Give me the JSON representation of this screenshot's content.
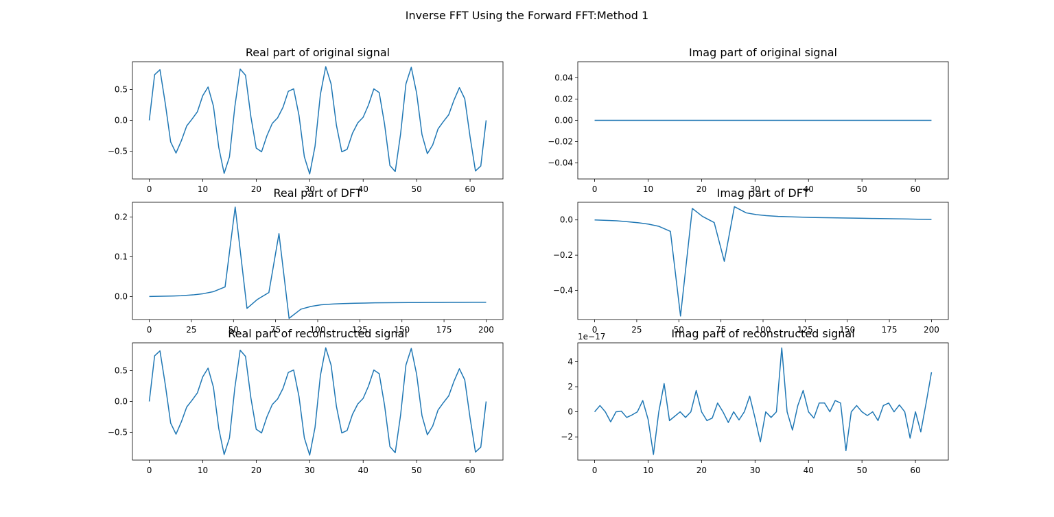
{
  "figure": {
    "title": "Inverse FFT Using the Forward FFT:Method 1"
  },
  "chart_data": [
    {
      "type": "line",
      "title": "Real part of original signal",
      "xlabel": "",
      "ylabel": "",
      "xlim": [
        -3.15,
        66.15
      ],
      "ylim": [
        -0.95,
        0.95
      ],
      "xticks": [
        0,
        10,
        20,
        30,
        40,
        50,
        60
      ],
      "yticks": [
        -0.5,
        0.0,
        0.5
      ],
      "ytick_labels": [
        "−0.5",
        "0.0",
        "0.5"
      ],
      "offset_label": "",
      "line_color": "#1f77b4",
      "grid": false,
      "x": [
        0,
        1,
        2,
        3,
        4,
        5,
        6,
        7,
        8,
        9,
        10,
        11,
        12,
        13,
        14,
        15,
        16,
        17,
        18,
        19,
        20,
        21,
        22,
        23,
        24,
        25,
        26,
        27,
        28,
        29,
        30,
        31,
        32,
        33,
        34,
        35,
        36,
        37,
        38,
        39,
        40,
        41,
        42,
        43,
        44,
        45,
        46,
        47,
        48,
        49,
        50,
        51,
        52,
        53,
        54,
        55,
        56,
        57,
        58,
        59,
        60,
        61,
        62,
        63
      ],
      "y": [
        0.0,
        0.74,
        0.82,
        0.27,
        -0.35,
        -0.53,
        -0.33,
        -0.09,
        0.02,
        0.14,
        0.4,
        0.54,
        0.23,
        -0.44,
        -0.86,
        -0.59,
        0.22,
        0.83,
        0.73,
        0.06,
        -0.45,
        -0.51,
        -0.25,
        -0.05,
        0.04,
        0.21,
        0.47,
        0.51,
        0.08,
        -0.59,
        -0.87,
        -0.42,
        0.42,
        0.87,
        0.59,
        -0.08,
        -0.51,
        -0.47,
        -0.21,
        -0.04,
        0.05,
        0.25,
        0.51,
        0.45,
        -0.06,
        -0.73,
        -0.83,
        -0.22,
        0.59,
        0.86,
        0.44,
        -0.23,
        -0.54,
        -0.4,
        -0.14,
        -0.02,
        0.09,
        0.33,
        0.53,
        0.35,
        -0.27,
        -0.82,
        -0.74,
        0.0
      ]
    },
    {
      "type": "line",
      "title": "Imag part of original signal",
      "xlabel": "",
      "ylabel": "",
      "xlim": [
        -3.15,
        66.15
      ],
      "ylim": [
        -0.055,
        0.055
      ],
      "xticks": [
        0,
        10,
        20,
        30,
        40,
        50,
        60
      ],
      "yticks": [
        -0.04,
        -0.02,
        0.0,
        0.02,
        0.04
      ],
      "ytick_labels": [
        "−0.04",
        "−0.02",
        "0.00",
        "0.02",
        "0.04"
      ],
      "offset_label": "",
      "line_color": "#1f77b4",
      "grid": false,
      "x": [
        0,
        63
      ],
      "y": [
        0.0,
        0.0
      ]
    },
    {
      "type": "line",
      "title": "Real part of DFT",
      "xlabel": "",
      "ylabel": "",
      "xlim": [
        -10,
        210
      ],
      "ylim": [
        -0.058,
        0.237
      ],
      "xticks": [
        0,
        25,
        50,
        75,
        100,
        125,
        150,
        175,
        200
      ],
      "yticks": [
        0.0,
        0.1,
        0.2
      ],
      "ytick_labels": [
        "0.0",
        "0.1",
        "0.2"
      ],
      "offset_label": "",
      "line_color": "#1f77b4",
      "grid": false,
      "x": [
        0,
        13,
        19,
        26,
        32,
        38,
        45,
        51,
        58,
        64,
        71,
        77,
        83,
        90,
        96,
        102,
        109,
        115,
        122,
        128,
        134,
        141,
        147,
        154,
        160,
        166,
        173,
        179,
        186,
        192,
        200
      ],
      "y": [
        0.0,
        0.001,
        0.002,
        0.004,
        0.007,
        0.012,
        0.024,
        0.225,
        -0.03,
        -0.008,
        0.01,
        0.158,
        -0.055,
        -0.032,
        -0.025,
        -0.021,
        -0.019,
        -0.018,
        -0.017,
        -0.0165,
        -0.016,
        -0.0158,
        -0.0156,
        -0.0154,
        -0.0152,
        -0.0151,
        -0.015,
        -0.0149,
        -0.0148,
        -0.0147,
        -0.0146
      ]
    },
    {
      "type": "line",
      "title": "Imag part of DFT",
      "xlabel": "",
      "ylabel": "",
      "xlim": [
        -10,
        210
      ],
      "ylim": [
        -0.565,
        0.1
      ],
      "xticks": [
        0,
        25,
        50,
        75,
        100,
        125,
        150,
        175,
        200
      ],
      "yticks": [
        -0.4,
        -0.2,
        0.0
      ],
      "ytick_labels": [
        "−0.4",
        "−0.2",
        "0.0"
      ],
      "offset_label": "",
      "line_color": "#1f77b4",
      "grid": false,
      "x": [
        0,
        13,
        19,
        26,
        32,
        38,
        45,
        51,
        58,
        64,
        71,
        77,
        83,
        90,
        96,
        102,
        109,
        115,
        122,
        128,
        134,
        141,
        147,
        154,
        160,
        166,
        173,
        179,
        186,
        192,
        200
      ],
      "y": [
        0.0,
        -0.005,
        -0.01,
        -0.016,
        -0.024,
        -0.036,
        -0.065,
        -0.545,
        0.065,
        0.02,
        -0.015,
        -0.235,
        0.075,
        0.04,
        0.03,
        0.024,
        0.02,
        0.018,
        0.016,
        0.014,
        0.013,
        0.012,
        0.011,
        0.01,
        0.009,
        0.008,
        0.007,
        0.006,
        0.005,
        0.004,
        0.003
      ]
    },
    {
      "type": "line",
      "title": "Real part of reconstructed signal",
      "xlabel": "",
      "ylabel": "",
      "xlim": [
        -3.15,
        66.15
      ],
      "ylim": [
        -0.95,
        0.95
      ],
      "xticks": [
        0,
        10,
        20,
        30,
        40,
        50,
        60
      ],
      "yticks": [
        -0.5,
        0.0,
        0.5
      ],
      "ytick_labels": [
        "−0.5",
        "0.0",
        "0.5"
      ],
      "offset_label": "",
      "line_color": "#1f77b4",
      "grid": false,
      "x": [
        0,
        1,
        2,
        3,
        4,
        5,
        6,
        7,
        8,
        9,
        10,
        11,
        12,
        13,
        14,
        15,
        16,
        17,
        18,
        19,
        20,
        21,
        22,
        23,
        24,
        25,
        26,
        27,
        28,
        29,
        30,
        31,
        32,
        33,
        34,
        35,
        36,
        37,
        38,
        39,
        40,
        41,
        42,
        43,
        44,
        45,
        46,
        47,
        48,
        49,
        50,
        51,
        52,
        53,
        54,
        55,
        56,
        57,
        58,
        59,
        60,
        61,
        62,
        63
      ],
      "y": [
        0.0,
        0.74,
        0.82,
        0.27,
        -0.35,
        -0.53,
        -0.33,
        -0.09,
        0.02,
        0.14,
        0.4,
        0.54,
        0.23,
        -0.44,
        -0.86,
        -0.59,
        0.22,
        0.83,
        0.73,
        0.06,
        -0.45,
        -0.51,
        -0.25,
        -0.05,
        0.04,
        0.21,
        0.47,
        0.51,
        0.08,
        -0.59,
        -0.87,
        -0.42,
        0.42,
        0.87,
        0.59,
        -0.08,
        -0.51,
        -0.47,
        -0.21,
        -0.04,
        0.05,
        0.25,
        0.51,
        0.45,
        -0.06,
        -0.73,
        -0.83,
        -0.22,
        0.59,
        0.86,
        0.44,
        -0.23,
        -0.54,
        -0.4,
        -0.14,
        -0.02,
        0.09,
        0.33,
        0.53,
        0.35,
        -0.27,
        -0.82,
        -0.74,
        0.0
      ]
    },
    {
      "type": "line",
      "title": "Imag part of reconstructed signal",
      "xlabel": "",
      "ylabel": "",
      "xlim": [
        -3.15,
        66.15
      ],
      "ylim": [
        -3.85e-17,
        5.5e-17
      ],
      "xticks": [
        0,
        10,
        20,
        30,
        40,
        50,
        60
      ],
      "yticks": [
        -2e-17,
        0,
        2e-17,
        4e-17
      ],
      "ytick_labels": [
        "−2",
        "0",
        "2",
        "4"
      ],
      "offset_label": "1e−17",
      "line_color": "#1f77b4",
      "grid": false,
      "x": [
        0,
        1,
        2,
        3,
        4,
        5,
        6,
        7,
        8,
        9,
        10,
        11,
        12,
        13,
        14,
        15,
        16,
        17,
        18,
        19,
        20,
        21,
        22,
        23,
        24,
        25,
        26,
        27,
        28,
        29,
        30,
        31,
        32,
        33,
        34,
        35,
        36,
        37,
        38,
        39,
        40,
        41,
        42,
        43,
        44,
        45,
        46,
        47,
        48,
        49,
        50,
        51,
        52,
        53,
        54,
        55,
        56,
        57,
        58,
        59,
        60,
        61,
        62,
        63
      ],
      "y": [
        0,
        5e-18,
        0,
        -8e-18,
        0,
        5e-19,
        -4.5e-18,
        -2.5e-18,
        0,
        9e-18,
        -6e-18,
        -3.4e-17,
        0,
        2.25e-17,
        -7e-18,
        -3.5e-18,
        0,
        -4.5e-18,
        0,
        1.7e-17,
        0,
        -7e-18,
        -5e-18,
        7e-18,
        0,
        -8.5e-18,
        0,
        -6.5e-18,
        0,
        1.25e-17,
        -5e-18,
        -2.4e-17,
        0,
        -4.5e-18,
        0,
        5.1e-17,
        0,
        -1.45e-17,
        5e-18,
        1.7e-17,
        0,
        -5e-18,
        7e-18,
        7e-18,
        0,
        9e-18,
        7e-18,
        -3.1e-17,
        0,
        5e-18,
        0,
        -3e-18,
        0,
        -7e-18,
        5e-18,
        7e-18,
        0,
        5.5e-18,
        0,
        -2.1e-17,
        0,
        -1.6e-17,
        7e-18,
        3.15e-17
      ]
    }
  ]
}
